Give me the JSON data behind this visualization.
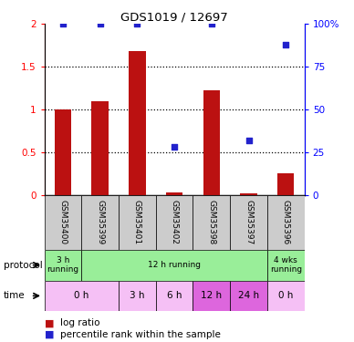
{
  "title": "GDS1019 / 12697",
  "samples": [
    "GSM35400",
    "GSM35399",
    "GSM35401",
    "GSM35402",
    "GSM35398",
    "GSM35397",
    "GSM35396"
  ],
  "log_ratio": [
    1.0,
    1.1,
    1.68,
    0.03,
    1.22,
    0.02,
    0.25
  ],
  "percentile_rank": [
    100,
    100,
    100,
    28,
    100,
    32,
    88
  ],
  "ylim_left": [
    0,
    2
  ],
  "ylim_right": [
    0,
    100
  ],
  "yticks_left": [
    0,
    0.5,
    1.0,
    1.5,
    2.0
  ],
  "ytick_labels_left": [
    "0",
    "0.5",
    "1",
    "1.5",
    "2"
  ],
  "yticks_right": [
    0,
    25,
    50,
    75,
    100
  ],
  "ytick_labels_right": [
    "0",
    "25",
    "50",
    "75",
    "100%"
  ],
  "bar_color": "#bb1111",
  "dot_color": "#2222cc",
  "protocol_data": [
    [
      0,
      1,
      "3 h\nrunning",
      "#99ee99"
    ],
    [
      1,
      6,
      "12 h running",
      "#99ee99"
    ],
    [
      6,
      7,
      "4 wks\nrunning",
      "#99ee99"
    ]
  ],
  "time_data": [
    [
      0,
      2,
      "0 h",
      "#f5c0f5"
    ],
    [
      2,
      3,
      "3 h",
      "#f5c0f5"
    ],
    [
      3,
      4,
      "6 h",
      "#f5c0f5"
    ],
    [
      4,
      5,
      "12 h",
      "#dd66dd"
    ],
    [
      5,
      6,
      "24 h",
      "#dd66dd"
    ],
    [
      6,
      7,
      "0 h",
      "#f5c0f5"
    ]
  ],
  "gsm_bg_color": "#cccccc",
  "dotted_yticks": [
    0.5,
    1.0,
    1.5
  ]
}
